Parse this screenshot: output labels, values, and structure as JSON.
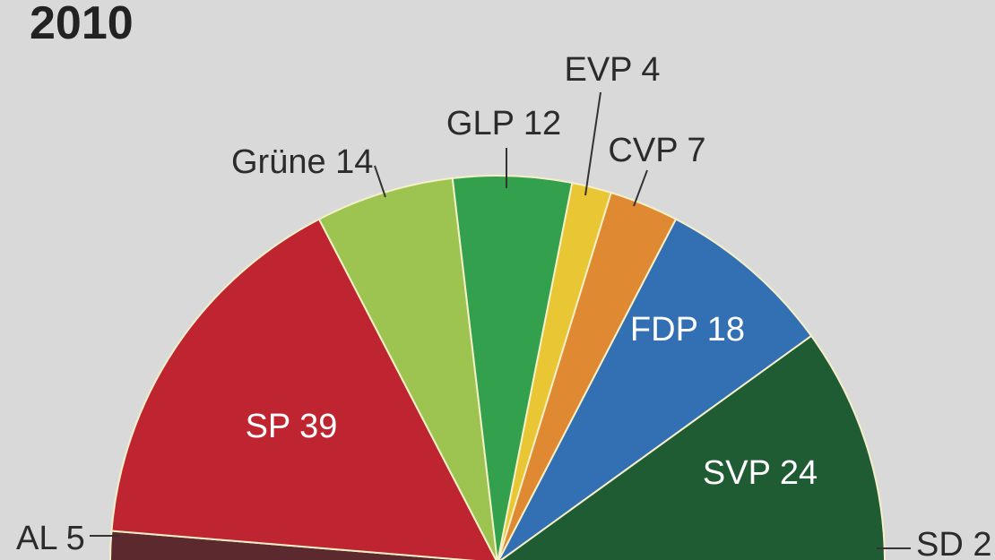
{
  "title": "2010",
  "chart_data": {
    "type": "pie",
    "variant": "semicircle-parliament",
    "title": "2010",
    "total": 125,
    "slices": [
      {
        "party": "AL",
        "seats": 5,
        "label": "AL 5",
        "color": "#5c2a2e"
      },
      {
        "party": "SP",
        "seats": 39,
        "label": "SP 39",
        "color": "#be2530"
      },
      {
        "party": "Grüne",
        "seats": 14,
        "label": "Grüne 14",
        "color": "#9dc451"
      },
      {
        "party": "GLP",
        "seats": 12,
        "label": "GLP 12",
        "color": "#33a04d"
      },
      {
        "party": "EVP",
        "seats": 4,
        "label": "EVP 4",
        "color": "#e9c634"
      },
      {
        "party": "CVP",
        "seats": 7,
        "label": "CVP 7",
        "color": "#df8a33"
      },
      {
        "party": "FDP",
        "seats": 18,
        "label": "FDP 18",
        "color": "#3270b3"
      },
      {
        "party": "SVP",
        "seats": 24,
        "label": "SVP 24",
        "color": "#1f5b33"
      },
      {
        "party": "SD",
        "seats": 2,
        "label": "SD 2",
        "color": "#8a4a22"
      }
    ]
  }
}
